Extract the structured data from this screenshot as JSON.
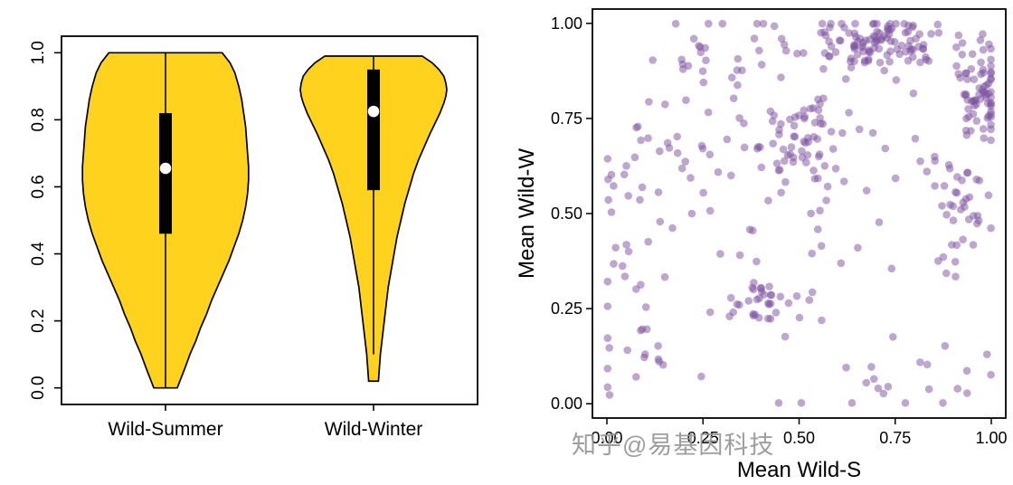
{
  "watermark": {
    "text": "知乎@易基因科技"
  },
  "chart_data": [
    {
      "type": "violin",
      "title": "",
      "categories": [
        "Wild-Summer",
        "Wild-Winter"
      ],
      "ylim": [
        0.0,
        1.0
      ],
      "yticks": [
        {
          "v": 0.0,
          "label": "0.0"
        },
        {
          "v": 0.2,
          "label": "0.2"
        },
        {
          "v": 0.4,
          "label": "0.4"
        },
        {
          "v": 0.6,
          "label": "0.6"
        },
        {
          "v": 0.8,
          "label": "0.8"
        },
        {
          "v": 1.0,
          "label": "1.0"
        }
      ],
      "fill_color": "#FFD21E",
      "outline_color": "#000000",
      "violins": [
        {
          "label": "Wild-Summer",
          "whisker_low": 0.0,
          "whisker_high": 1.0,
          "box_low": 0.46,
          "box_high": 0.82,
          "median": 0.655,
          "shape": [
            [
              1.0,
              0.58
            ],
            [
              0.97,
              0.66
            ],
            [
              0.94,
              0.71
            ],
            [
              0.9,
              0.75
            ],
            [
              0.86,
              0.78
            ],
            [
              0.82,
              0.8
            ],
            [
              0.78,
              0.82
            ],
            [
              0.74,
              0.83
            ],
            [
              0.7,
              0.84
            ],
            [
              0.66,
              0.85
            ],
            [
              0.62,
              0.85
            ],
            [
              0.58,
              0.84
            ],
            [
              0.54,
              0.82
            ],
            [
              0.5,
              0.79
            ],
            [
              0.46,
              0.75
            ],
            [
              0.42,
              0.7
            ],
            [
              0.38,
              0.65
            ],
            [
              0.34,
              0.59
            ],
            [
              0.3,
              0.53
            ],
            [
              0.26,
              0.47
            ],
            [
              0.22,
              0.42
            ],
            [
              0.18,
              0.36
            ],
            [
              0.14,
              0.31
            ],
            [
              0.1,
              0.25
            ],
            [
              0.06,
              0.2
            ],
            [
              0.03,
              0.16
            ],
            [
              0.0,
              0.12
            ]
          ]
        },
        {
          "label": "Wild-Winter",
          "whisker_low": 0.1,
          "whisker_high": 0.99,
          "box_low": 0.59,
          "box_high": 0.95,
          "median": 0.825,
          "shape": [
            [
              0.99,
              0.5
            ],
            [
              0.97,
              0.6
            ],
            [
              0.95,
              0.67
            ],
            [
              0.93,
              0.72
            ],
            [
              0.91,
              0.74
            ],
            [
              0.89,
              0.75
            ],
            [
              0.87,
              0.74
            ],
            [
              0.85,
              0.72
            ],
            [
              0.82,
              0.68
            ],
            [
              0.79,
              0.63
            ],
            [
              0.76,
              0.58
            ],
            [
              0.72,
              0.52
            ],
            [
              0.68,
              0.46
            ],
            [
              0.64,
              0.41
            ],
            [
              0.6,
              0.37
            ],
            [
              0.55,
              0.32
            ],
            [
              0.5,
              0.28
            ],
            [
              0.45,
              0.24
            ],
            [
              0.4,
              0.21
            ],
            [
              0.35,
              0.18
            ],
            [
              0.3,
              0.15
            ],
            [
              0.25,
              0.13
            ],
            [
              0.2,
              0.11
            ],
            [
              0.15,
              0.09
            ],
            [
              0.1,
              0.07
            ],
            [
              0.06,
              0.06
            ],
            [
              0.02,
              0.05
            ]
          ]
        }
      ]
    },
    {
      "type": "scatter",
      "xlabel": "Mean Wild-S",
      "ylabel": "Mean Wild-W",
      "xlim": [
        0.0,
        1.0
      ],
      "ylim": [
        0.0,
        1.0
      ],
      "xticks": [
        {
          "v": 0.0,
          "label": "0.00"
        },
        {
          "v": 0.25,
          "label": "0.25"
        },
        {
          "v": 0.5,
          "label": "0.50"
        },
        {
          "v": 0.75,
          "label": "0.75"
        },
        {
          "v": 1.0,
          "label": "1.00"
        }
      ],
      "yticks": [
        {
          "v": 0.0,
          "label": "0.00"
        },
        {
          "v": 0.25,
          "label": "0.25"
        },
        {
          "v": 0.5,
          "label": "0.50"
        },
        {
          "v": 0.75,
          "label": "0.75"
        },
        {
          "v": 1.0,
          "label": "1.00"
        }
      ],
      "point_color": "#7B4FA0",
      "point_opacity": 0.5,
      "point_radius": 4.3,
      "seed": 20240715,
      "clusters": [
        {
          "cx": 0.7,
          "cy": 0.95,
          "sx": 0.1,
          "sy": 0.035,
          "n": 110
        },
        {
          "cx": 0.975,
          "cy": 0.83,
          "sx": 0.03,
          "sy": 0.055,
          "n": 70
        },
        {
          "cx": 0.48,
          "cy": 0.69,
          "sx": 0.07,
          "sy": 0.06,
          "n": 55
        },
        {
          "cx": 0.4,
          "cy": 0.27,
          "sx": 0.05,
          "sy": 0.03,
          "n": 35
        },
        {
          "cx": 0.93,
          "cy": 0.55,
          "sx": 0.05,
          "sy": 0.09,
          "n": 35
        },
        {
          "cx": 0.06,
          "cy": 0.28,
          "sx": 0.05,
          "sy": 0.13,
          "n": 30
        },
        {
          "cx": 0.27,
          "cy": 0.92,
          "sx": 0.06,
          "sy": 0.05,
          "n": 18
        },
        {
          "cx": 0.5,
          "cy": 0.5,
          "sx": 0.27,
          "sy": 0.27,
          "n": 90
        },
        {
          "cx": 0.75,
          "cy": 0.07,
          "sx": 0.12,
          "sy": 0.05,
          "n": 15
        },
        {
          "cx": 0.15,
          "cy": 0.65,
          "sx": 0.08,
          "sy": 0.1,
          "n": 20
        }
      ]
    }
  ]
}
